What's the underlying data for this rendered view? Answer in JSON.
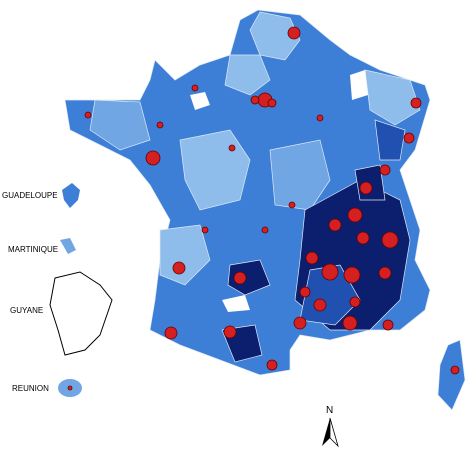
{
  "overseas_labels": [
    "GUADELOUPE",
    "MARTINIQUE",
    "GUYANE",
    "REUNION"
  ],
  "north_arrow": "N"
}
